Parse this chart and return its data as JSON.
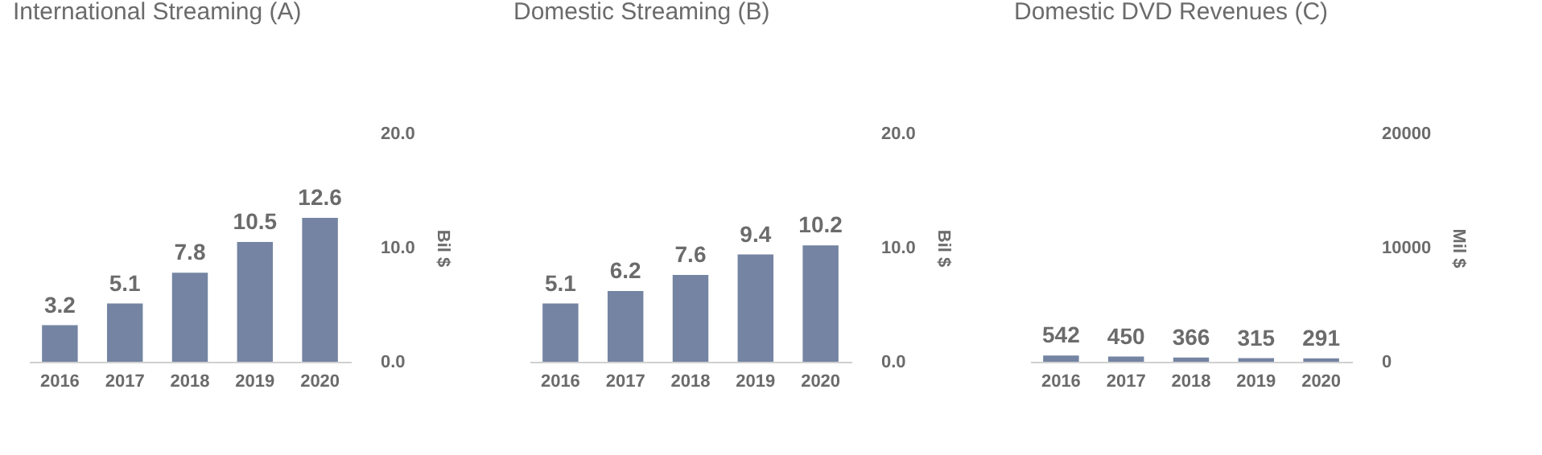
{
  "chart_data": [
    {
      "type": "bar",
      "title": "International Streaming (A)",
      "ylabel": "Bil $",
      "categories": [
        "2016",
        "2017",
        "2018",
        "2019",
        "2020"
      ],
      "values": [
        3.2,
        5.1,
        7.8,
        10.5,
        12.6
      ],
      "color": "#7484a2",
      "ylim": [
        0,
        20
      ],
      "yticks": [
        {
          "value": 0,
          "label": "0.0"
        },
        {
          "value": 10,
          "label": "10.0"
        },
        {
          "value": 20,
          "label": "20.0"
        }
      ],
      "data_labels": true,
      "grid": false
    },
    {
      "type": "bar",
      "title": "Domestic Streaming (B)",
      "ylabel": "Bil $",
      "categories": [
        "2016",
        "2017",
        "2018",
        "2019",
        "2020"
      ],
      "values": [
        5.1,
        6.2,
        7.6,
        9.4,
        10.2
      ],
      "color": "#7484a2",
      "ylim": [
        0,
        20
      ],
      "yticks": [
        {
          "value": 0,
          "label": "0.0"
        },
        {
          "value": 10,
          "label": "10.0"
        },
        {
          "value": 20,
          "label": "20.0"
        }
      ],
      "data_labels": true,
      "grid": false
    },
    {
      "type": "bar",
      "title": "Domestic DVD Revenues (C)",
      "ylabel": "Mil $",
      "categories": [
        "2016",
        "2017",
        "2018",
        "2019",
        "2020"
      ],
      "values": [
        542,
        450,
        366,
        315,
        291
      ],
      "color": "#7484a2",
      "ylim": [
        0,
        20000
      ],
      "yticks": [
        0,
        10000,
        20000
      ],
      "data_labels": true,
      "grid": false
    }
  ]
}
